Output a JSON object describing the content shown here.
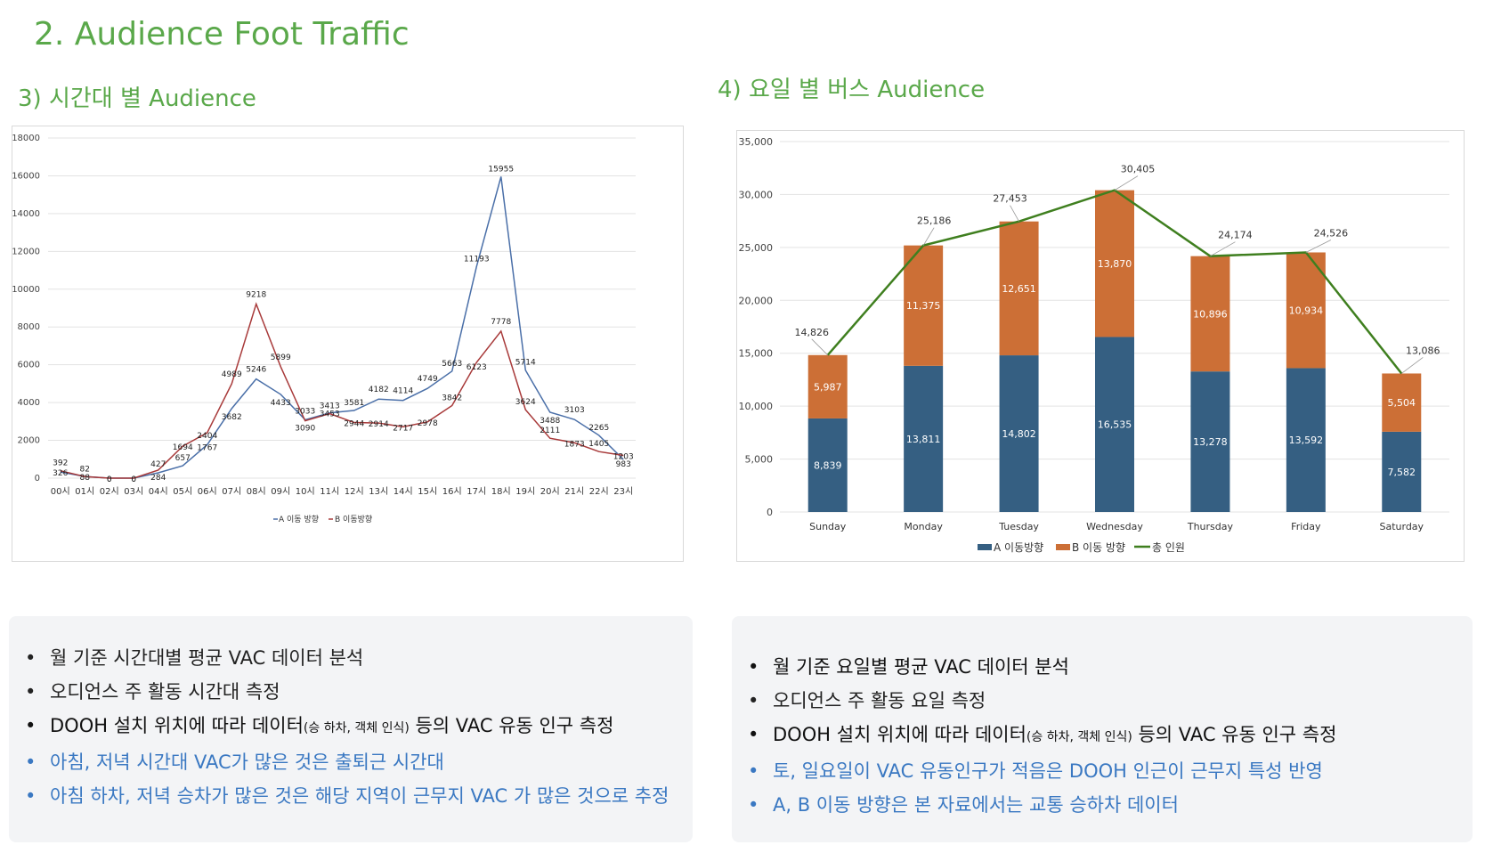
{
  "page_title": "2. Audience Foot Traffic",
  "section3_title": "3) 시간대 별 Audience",
  "section4_title": "4) 요일 별 버스 Audience",
  "colors": {
    "green": "#5aa84a",
    "blue_line": "#4a6fa8",
    "red_line": "#a83a3a",
    "bar_a": "#355f82",
    "bar_b": "#cc6f36",
    "total_line": "#3f7f1f",
    "note_blue": "#3a78c2"
  },
  "chart_data": [
    {
      "type": "line",
      "title": "",
      "xlabel": "",
      "ylabel": "",
      "ylim": [
        0,
        18000
      ],
      "yticks": [
        "0",
        "2000",
        "4000",
        "6000",
        "8000",
        "10000",
        "12000",
        "14000",
        "16000",
        "18000"
      ],
      "categories": [
        "00시",
        "01시",
        "02시",
        "03시",
        "04시",
        "05시",
        "06시",
        "07시",
        "08시",
        "09시",
        "10시",
        "11시",
        "12시",
        "13시",
        "14시",
        "15시",
        "16시",
        "17시",
        "18시",
        "19시",
        "20시",
        "21시",
        "22시",
        "23시"
      ],
      "series": [
        {
          "name": "A 이동 방향",
          "color": "#4a6fa8",
          "values": [
            326,
            88,
            0,
            0,
            284,
            657,
            1767,
            3682,
            5246,
            4433,
            3090,
            3453,
            3581,
            4182,
            4114,
            4749,
            5663,
            11193,
            15955,
            5714,
            3488,
            3103,
            2265,
            983
          ]
        },
        {
          "name": "B 이동방향",
          "color": "#a83a3a",
          "values": [
            392,
            82,
            0,
            0,
            427,
            1694,
            2404,
            4989,
            9218,
            5899,
            3033,
            3413,
            2944,
            2914,
            2717,
            2978,
            3842,
            6123,
            7778,
            3624,
            2111,
            1873,
            1405,
            1203
          ]
        }
      ],
      "legend": "bottom",
      "grid": true
    },
    {
      "type": "bar",
      "stacked": true,
      "title": "",
      "xlabel": "",
      "ylabel": "",
      "ylim": [
        0,
        35000
      ],
      "yticks": [
        "0",
        "5,000",
        "10,000",
        "15,000",
        "20,000",
        "25,000",
        "30,000",
        "35,000"
      ],
      "categories": [
        "Sunday",
        "Monday",
        "Tuesday",
        "Wednesday",
        "Thursday",
        "Friday",
        "Saturday"
      ],
      "series": [
        {
          "name": "A 이동방향",
          "color": "#355f82",
          "values": [
            8839,
            13811,
            14802,
            16535,
            13278,
            13592,
            7582
          ],
          "labels": [
            "8,839",
            "13,811",
            "14,802",
            "16,535",
            "13,278",
            "13,592",
            "7,582"
          ]
        },
        {
          "name": "B 이동 방향",
          "color": "#cc6f36",
          "values": [
            5987,
            11375,
            12651,
            13870,
            10896,
            10934,
            5504
          ],
          "labels": [
            "5,987",
            "11,375",
            "12,651",
            "13,870",
            "10,896",
            "10,934",
            "5,504"
          ]
        },
        {
          "name": "총 인원",
          "type": "line",
          "color": "#3f7f1f",
          "values": [
            14826,
            25186,
            27453,
            30405,
            24174,
            24526,
            13086
          ],
          "labels": [
            "14,826",
            "25,186",
            "27,453",
            "30,405",
            "24,174",
            "24,526",
            "13,086"
          ]
        }
      ],
      "legend": "bottom",
      "grid": true
    }
  ],
  "notes_left": [
    {
      "text": "월 기준 시간대별 평균 VAC 데이터 분석",
      "style": "gray"
    },
    {
      "text": "오디언스 주 활동 시간대 측정",
      "style": "gray"
    },
    {
      "pre": "DOOH 설치 위치에 따라 데이터",
      "small": "(승 하차, 객체 인식)",
      "post": " 등의 VAC 유동 인구 측정",
      "style": "dark"
    },
    {
      "text": "아침, 저녁 시간대 VAC가 많은 것은 출퇴근 시간대",
      "style": "blue"
    },
    {
      "text": "아침 하차, 저녁 승차가 많은 것은 해당 지역이 근무지 VAC 가 많은 것으로 추정",
      "style": "blue"
    }
  ],
  "notes_right": [
    {
      "text": "월 기준 요일별 평균 VAC 데이터 분석",
      "style": "dark"
    },
    {
      "text": "오디언스 주 활동 요일 측정",
      "style": "gray"
    },
    {
      "pre": "DOOH 설치 위치에 따라 데이터",
      "small": "(승 하차, 객체 인식)",
      "post": " 등의 VAC 유동 인구 측정",
      "style": "dark"
    },
    {
      "text": "토, 일요일이 VAC 유동인구가 적음은 DOOH 인근이 근무지 특성 반영",
      "style": "blue"
    },
    {
      "text": "A, B 이동 방향은 본 자료에서는 교통 승하차 데이터",
      "style": "blue"
    }
  ],
  "bullet": "•"
}
